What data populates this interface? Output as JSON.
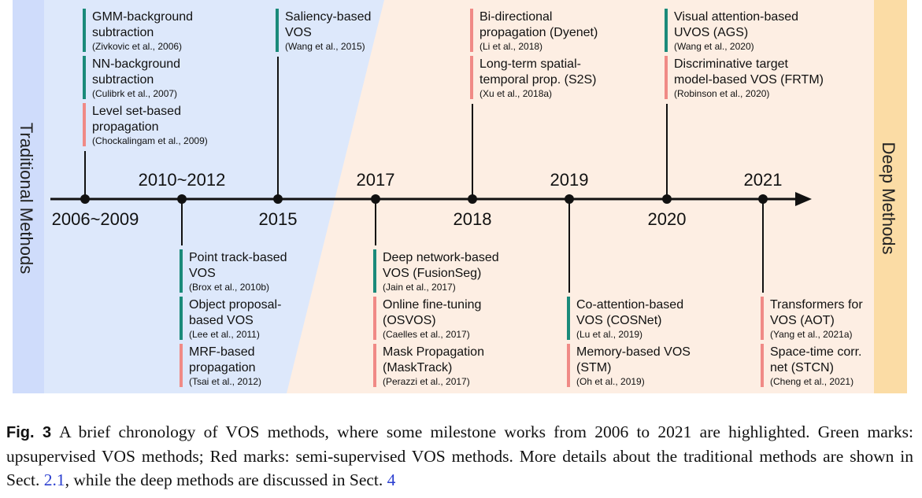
{
  "side_labels": {
    "left": "Traditional Methods",
    "right": "Deep Methods"
  },
  "colors": {
    "unsupervised": "#1a8a7a",
    "semi_supervised": "#f08a86",
    "traditional_bg": "#dde8fb",
    "deep_bg": "#fdeee3",
    "left_band": "#cfdcfb",
    "right_band": "#fbdca5"
  },
  "years": [
    {
      "label": "2006~2009"
    },
    {
      "label": "2010~2012"
    },
    {
      "label": "2015"
    },
    {
      "label": "2017"
    },
    {
      "label": "2018"
    },
    {
      "label": "2019"
    },
    {
      "label": "2020"
    },
    {
      "label": "2021"
    }
  ],
  "milestones": {
    "y2006": [
      {
        "title": [
          "GMM-background",
          "subtraction"
        ],
        "ref": "(Zivkovic et al., 2006)",
        "type": "unsupervised"
      },
      {
        "title": [
          "NN-background",
          "subtraction"
        ],
        "ref": "(Culibrk et al., 2007)",
        "type": "unsupervised"
      },
      {
        "title": [
          "Level set-based",
          "propagation"
        ],
        "ref": "(Chockalingam et al., 2009)",
        "type": "semi_supervised"
      }
    ],
    "y2010": [
      {
        "title": [
          "Point track-based",
          "VOS"
        ],
        "ref": "(Brox et al., 2010b)",
        "type": "unsupervised"
      },
      {
        "title": [
          "Object proposal-",
          "based VOS"
        ],
        "ref": "(Lee et al., 2011)",
        "type": "unsupervised"
      },
      {
        "title": [
          "MRF-based",
          "propagation"
        ],
        "ref": "(Tsai et al., 2012)",
        "type": "semi_supervised"
      }
    ],
    "y2015": [
      {
        "title": [
          "Saliency-based",
          "VOS"
        ],
        "ref": "(Wang et al., 2015)",
        "type": "unsupervised"
      }
    ],
    "y2017": [
      {
        "title": [
          "Deep network-based",
          "VOS (FusionSeg)"
        ],
        "ref": "(Jain et al., 2017)",
        "type": "unsupervised"
      },
      {
        "title": [
          "Online fine-tuning",
          "(OSVOS)"
        ],
        "ref": "(Caelles et al., 2017)",
        "type": "semi_supervised"
      },
      {
        "title": [
          "Mask Propagation",
          "(MaskTrack)"
        ],
        "ref": "(Perazzi et al., 2017)",
        "type": "semi_supervised"
      }
    ],
    "y2018": [
      {
        "title": [
          "Bi-directional",
          "propagation (Dyenet)"
        ],
        "ref": "(Li et al., 2018)",
        "type": "semi_supervised"
      },
      {
        "title": [
          "Long-term spatial-",
          "temporal prop. (S2S)"
        ],
        "ref": "(Xu et al., 2018a)",
        "type": "semi_supervised"
      }
    ],
    "y2019": [
      {
        "title": [
          "Co-attention-based",
          "VOS (COSNet)"
        ],
        "ref": "(Lu et al., 2019)",
        "type": "unsupervised"
      },
      {
        "title": [
          "Memory-based VOS",
          "(STM)"
        ],
        "ref": "(Oh et al., 2019)",
        "type": "semi_supervised"
      }
    ],
    "y2020": [
      {
        "title": [
          "Visual attention-based",
          "UVOS (AGS)"
        ],
        "ref": "(Wang et al., 2020)",
        "type": "unsupervised"
      },
      {
        "title": [
          "Discriminative target",
          "model-based VOS (FRTM)"
        ],
        "ref": "(Robinson et al., 2020)",
        "type": "semi_supervised"
      }
    ],
    "y2021": [
      {
        "title": [
          "Transformers for",
          "VOS (AOT)"
        ],
        "ref": "(Yang et al., 2021a)",
        "type": "semi_supervised"
      },
      {
        "title": [
          "Space-time corr.",
          "net (STCN)"
        ],
        "ref": "(Cheng et al., 2021)",
        "type": "semi_supervised"
      }
    ]
  },
  "caption": {
    "label": "Fig. 3",
    "text_1": "A brief chronology of VOS methods, where some milestone works from 2006 to 2021 are highlighted. Green marks: upsupervised VOS methods; Red marks: semi-supervised VOS methods. More details about the traditional methods are shown in Sect.",
    "ref_1": "2.1",
    "text_2": ", while the deep methods are discussed in Sect.",
    "ref_2": "4"
  }
}
